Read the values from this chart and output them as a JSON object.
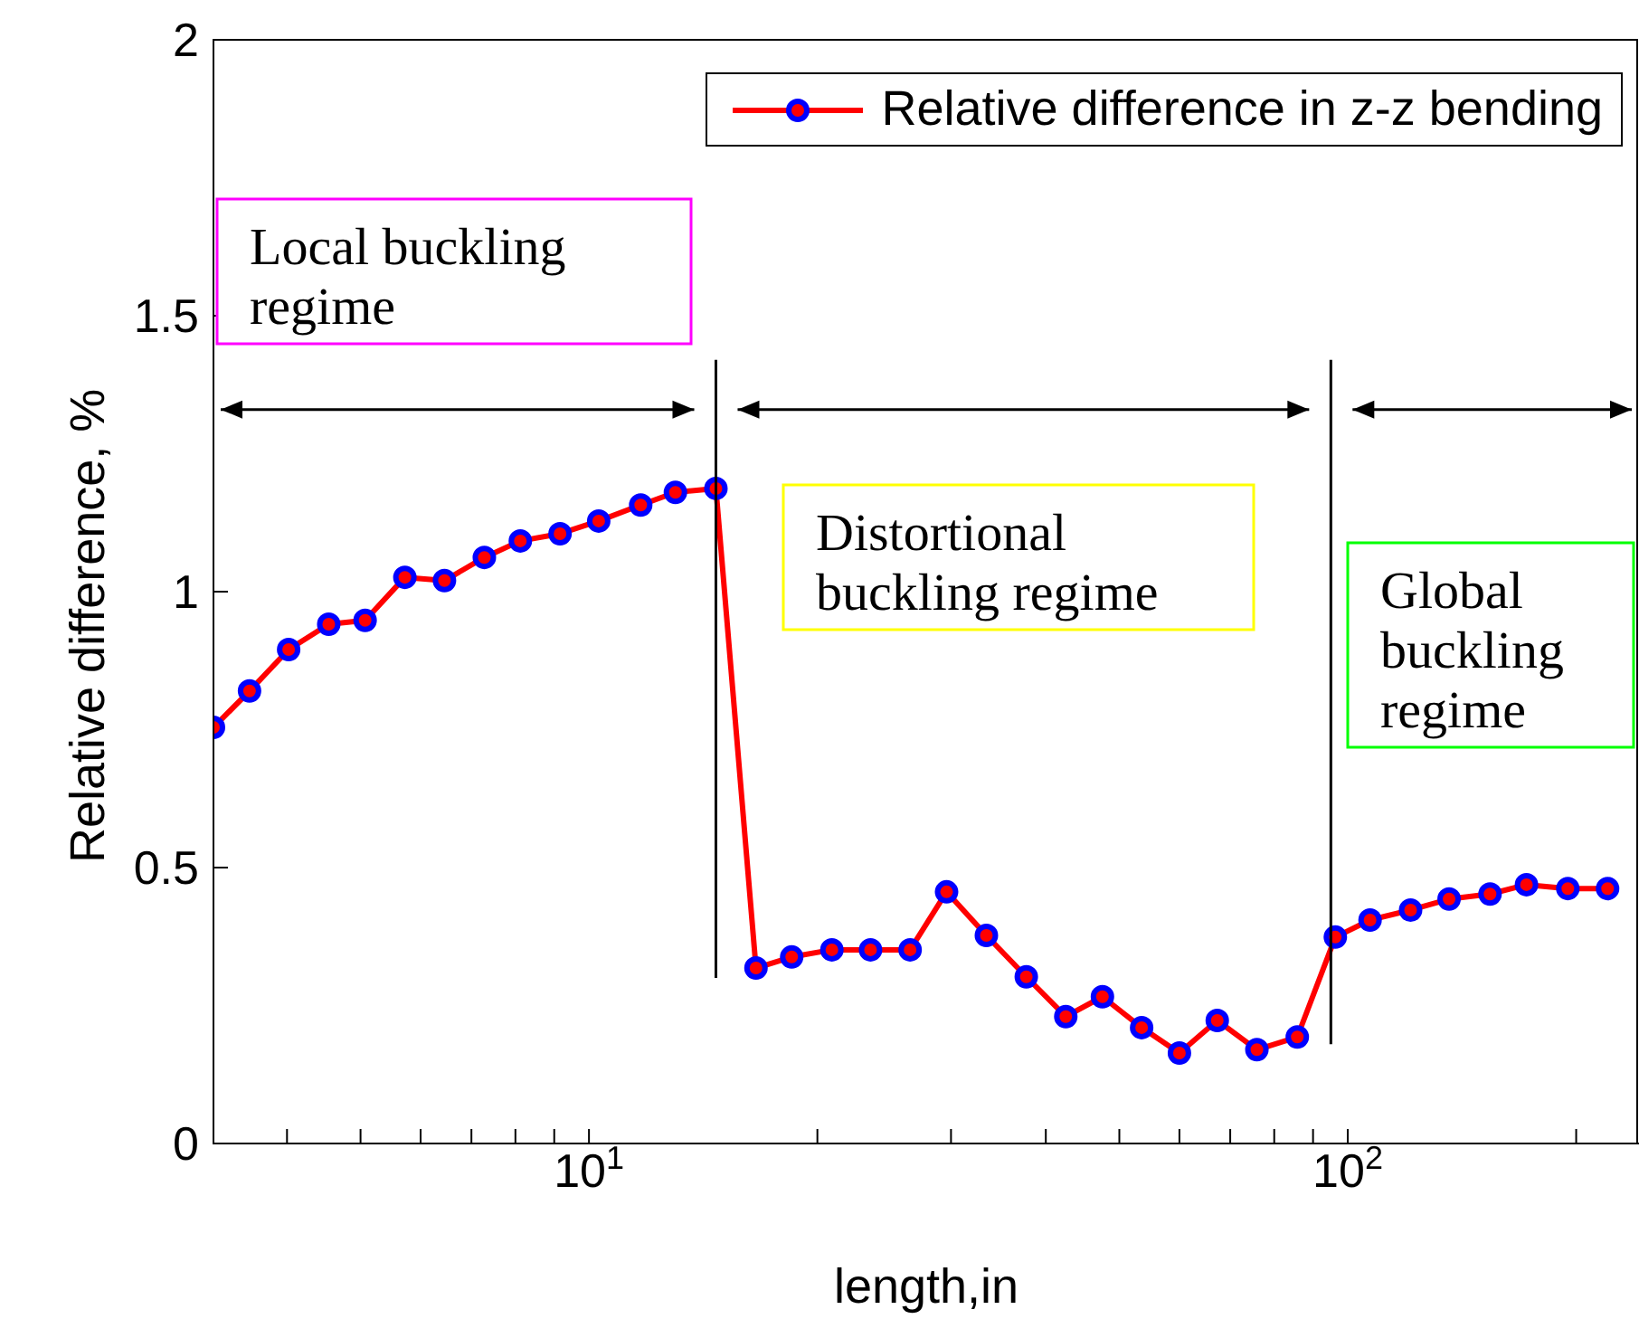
{
  "chart_data": {
    "type": "line",
    "xlabel": "length,in",
    "ylabel": "Relative difference, %",
    "log": "x",
    "xlim": [
      3.2,
      242
    ],
    "xticks": [
      {
        "value": 4,
        "label": null
      },
      {
        "value": 5,
        "label": null
      },
      {
        "value": 6,
        "label": null
      },
      {
        "value": 7,
        "label": null
      },
      {
        "value": 8,
        "label": null
      },
      {
        "value": 9,
        "label": null
      },
      {
        "value": 10,
        "label": "10$^{1}$"
      },
      {
        "value": 20,
        "label": null
      },
      {
        "value": 30,
        "label": null
      },
      {
        "value": 40,
        "label": null
      },
      {
        "value": 50,
        "label": null
      },
      {
        "value": 60,
        "label": null
      },
      {
        "value": 70,
        "label": null
      },
      {
        "value": 80,
        "label": null
      },
      {
        "value": 90,
        "label": null
      },
      {
        "value": 100,
        "label": "10$^{2}$"
      },
      {
        "value": 200,
        "label": null
      }
    ],
    "ylim": [
      0,
      2
    ],
    "yticks": [
      0,
      0.5,
      1,
      1.5,
      2
    ],
    "grid": false,
    "legend": "top right",
    "marker": "circle",
    "line_style": "solid",
    "series": [
      {
        "name": "Relative difference in z-z bending",
        "color": "#ff0000",
        "x": [
          3.2,
          3.57,
          4.02,
          4.54,
          5.07,
          5.72,
          6.45,
          7.28,
          8.12,
          9.16,
          10.3,
          11.7,
          13.0,
          14.7,
          16.6,
          18.5,
          20.9,
          23.5,
          26.5,
          29.6,
          33.4,
          37.7,
          42.5,
          47.5,
          53.5,
          60.0,
          67.3,
          75.9,
          85.8,
          96.3,
          107,
          121,
          136,
          154,
          172,
          195,
          220
        ],
        "values": [
          0.754,
          0.82,
          0.895,
          0.941,
          0.948,
          1.026,
          1.02,
          1.062,
          1.092,
          1.105,
          1.128,
          1.157,
          1.18,
          1.187,
          0.318,
          0.338,
          0.351,
          0.351,
          0.351,
          0.456,
          0.377,
          0.302,
          0.23,
          0.266,
          0.21,
          0.164,
          0.223,
          0.17,
          0.193,
          0.374,
          0.405,
          0.423,
          0.443,
          0.452,
          0.469,
          0.462,
          0.462
        ]
      }
    ],
    "ref_lines": [
      {
        "axis": "x",
        "value": 14.7,
        "color": "#000000"
      },
      {
        "axis": "x",
        "value": 95,
        "color": "#000000"
      }
    ],
    "annotations": [
      "Local buckling\nregime",
      "Distortional\nbuckling regime",
      "Global\nbuckling\nregime"
    ]
  }
}
